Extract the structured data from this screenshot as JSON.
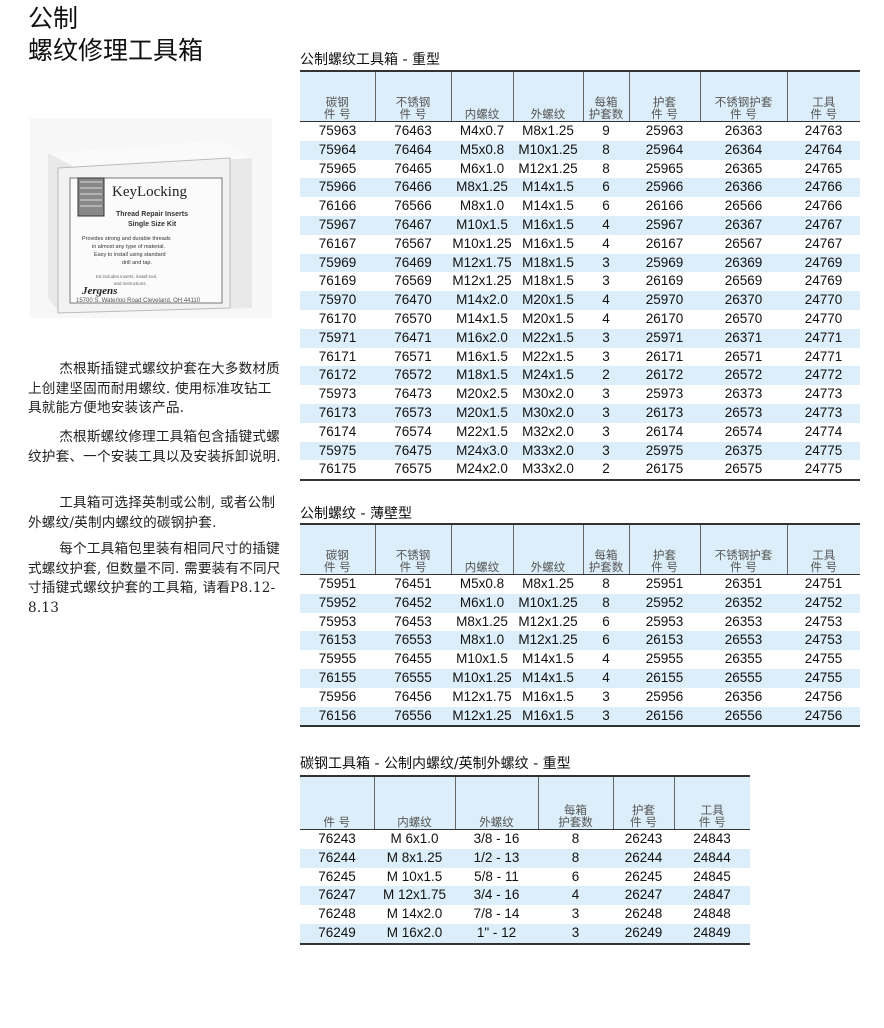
{
  "title": {
    "line1": "公制",
    "line2": "螺纹修理工具箱"
  },
  "product_image": {
    "brand": "Jergens",
    "name": "KeyLocking",
    "subtitle": "Thread Repair Inserts Single Size Kit",
    "desc": "Provides strong and durable threads in almost any type of material. Easy to install using standard drill and tap.",
    "kit_note": "Kit includes inserts, install tool, and instructions.",
    "address": "15700 S. Waterloo Road Cleveland, OH 44110"
  },
  "paragraphs": [
    "杰根斯插键式螺纹护套在大多数材质上创建坚固而耐用螺纹. 使用标准攻钻工具就能方便地安装该产品.",
    "杰根斯螺纹修理工具箱包含插键式螺纹护套、一个安装工具以及安装拆卸说明.",
    "工具箱可选择英制或公制, 或者公制外螺纹/英制内螺纹的碳钢护套.",
    "每个工具箱包里装有相同尺寸的插键式螺纹护套, 但数量不同. 需要装有不同尺寸插键式螺纹护套的工具箱, 请看P8.12-8.13"
  ],
  "colors": {
    "row_band": "#dceef9",
    "rule": "#333333"
  },
  "tables": [
    {
      "title": "公制螺纹工具箱 - 重型",
      "headers": [
        "碳钢\n件 号",
        "不锈钢\n件 号",
        "内螺纹",
        "外螺纹",
        "每箱\n护套数",
        "护套\n件 号",
        "不锈钢护套\n件 号",
        "工具\n件 号"
      ],
      "rows": [
        [
          "75963",
          "76463",
          "M4x0.7",
          "M8x1.25",
          "9",
          "25963",
          "26363",
          "24763"
        ],
        [
          "75964",
          "76464",
          "M5x0.8",
          "M10x1.25",
          "8",
          "25964",
          "26364",
          "24764"
        ],
        [
          "75965",
          "76465",
          "M6x1.0",
          "M12x1.25",
          "8",
          "25965",
          "26365",
          "24765"
        ],
        [
          "75966",
          "76466",
          "M8x1.25",
          "M14x1.5",
          "6",
          "25966",
          "26366",
          "24766"
        ],
        [
          "76166",
          "76566",
          "M8x1.0",
          "M14x1.5",
          "6",
          "26166",
          "26566",
          "24766"
        ],
        [
          "75967",
          "76467",
          "M10x1.5",
          "M16x1.5",
          "4",
          "25967",
          "26367",
          "24767"
        ],
        [
          "76167",
          "76567",
          "M10x1.25",
          "M16x1.5",
          "4",
          "26167",
          "26567",
          "24767"
        ],
        [
          "75969",
          "76469",
          "M12x1.75",
          "M18x1.5",
          "3",
          "25969",
          "26369",
          "24769"
        ],
        [
          "76169",
          "76569",
          "M12x1.25",
          "M18x1.5",
          "3",
          "26169",
          "26569",
          "24769"
        ],
        [
          "75970",
          "76470",
          "M14x2.0",
          "M20x1.5",
          "4",
          "25970",
          "26370",
          "24770"
        ],
        [
          "76170",
          "76570",
          "M14x1.5",
          "M20x1.5",
          "4",
          "26170",
          "26570",
          "24770"
        ],
        [
          "75971",
          "76471",
          "M16x2.0",
          "M22x1.5",
          "3",
          "25971",
          "26371",
          "24771"
        ],
        [
          "76171",
          "76571",
          "M16x1.5",
          "M22x1.5",
          "3",
          "26171",
          "26571",
          "24771"
        ],
        [
          "76172",
          "76572",
          "M18x1.5",
          "M24x1.5",
          "2",
          "26172",
          "26572",
          "24772"
        ],
        [
          "75973",
          "76473",
          "M20x2.5",
          "M30x2.0",
          "3",
          "25973",
          "26373",
          "24773"
        ],
        [
          "76173",
          "76573",
          "M20x1.5",
          "M30x2.0",
          "3",
          "26173",
          "26573",
          "24773"
        ],
        [
          "76174",
          "76574",
          "M22x1.5",
          "M32x2.0",
          "3",
          "26174",
          "26574",
          "24774"
        ],
        [
          "75975",
          "76475",
          "M24x3.0",
          "M33x2.0",
          "3",
          "25975",
          "26375",
          "24775"
        ],
        [
          "76175",
          "76575",
          "M24x2.0",
          "M33x2.0",
          "2",
          "26175",
          "26575",
          "24775"
        ]
      ]
    },
    {
      "title": "公制螺纹 - 薄壁型",
      "headers": [
        "碳钢\n件 号",
        "不锈钢\n件 号",
        "内螺纹",
        "外螺纹",
        "每箱\n护套数",
        "护套\n件 号",
        "不锈钢护套\n件 号",
        "工具\n件 号"
      ],
      "rows": [
        [
          "75951",
          "76451",
          "M5x0.8",
          "M8x1.25",
          "8",
          "25951",
          "26351",
          "24751"
        ],
        [
          "75952",
          "76452",
          "M6x1.0",
          "M10x1.25",
          "8",
          "25952",
          "26352",
          "24752"
        ],
        [
          "75953",
          "76453",
          "M8x1.25",
          "M12x1.25",
          "6",
          "25953",
          "26353",
          "24753"
        ],
        [
          "76153",
          "76553",
          "M8x1.0",
          "M12x1.25",
          "6",
          "26153",
          "26553",
          "24753"
        ],
        [
          "75955",
          "76455",
          "M10x1.5",
          "M14x1.5",
          "4",
          "25955",
          "26355",
          "24755"
        ],
        [
          "76155",
          "76555",
          "M10x1.25",
          "M14x1.5",
          "4",
          "26155",
          "26555",
          "24755"
        ],
        [
          "75956",
          "76456",
          "M12x1.75",
          "M16x1.5",
          "3",
          "25956",
          "26356",
          "24756"
        ],
        [
          "76156",
          "76556",
          "M12x1.25",
          "M16x1.5",
          "3",
          "26156",
          "26556",
          "24756"
        ]
      ]
    },
    {
      "title": "碳钢工具箱 - 公制内螺纹/英制外螺纹 - 重型",
      "headers": [
        "件 号",
        "内螺纹",
        "外螺纹",
        "每箱\n护套数",
        "护套\n件 号",
        "工具\n件 号"
      ],
      "rows": [
        [
          "76243",
          "M 6x1.0",
          "3/8 - 16",
          "8",
          "26243",
          "24843"
        ],
        [
          "76244",
          "M 8x1.25",
          "1/2 - 13",
          "8",
          "26244",
          "24844"
        ],
        [
          "76245",
          "M 10x1.5",
          "5/8 - 11",
          "6",
          "26245",
          "24845"
        ],
        [
          "76247",
          "M 12x1.75",
          "3/4 - 16",
          "4",
          "26247",
          "24847"
        ],
        [
          "76248",
          "M 14x2.0",
          "7/8 - 14",
          "3",
          "26248",
          "24848"
        ],
        [
          "76249",
          "M 16x2.0",
          "1\" - 12",
          "3",
          "26249",
          "24849"
        ]
      ]
    }
  ]
}
